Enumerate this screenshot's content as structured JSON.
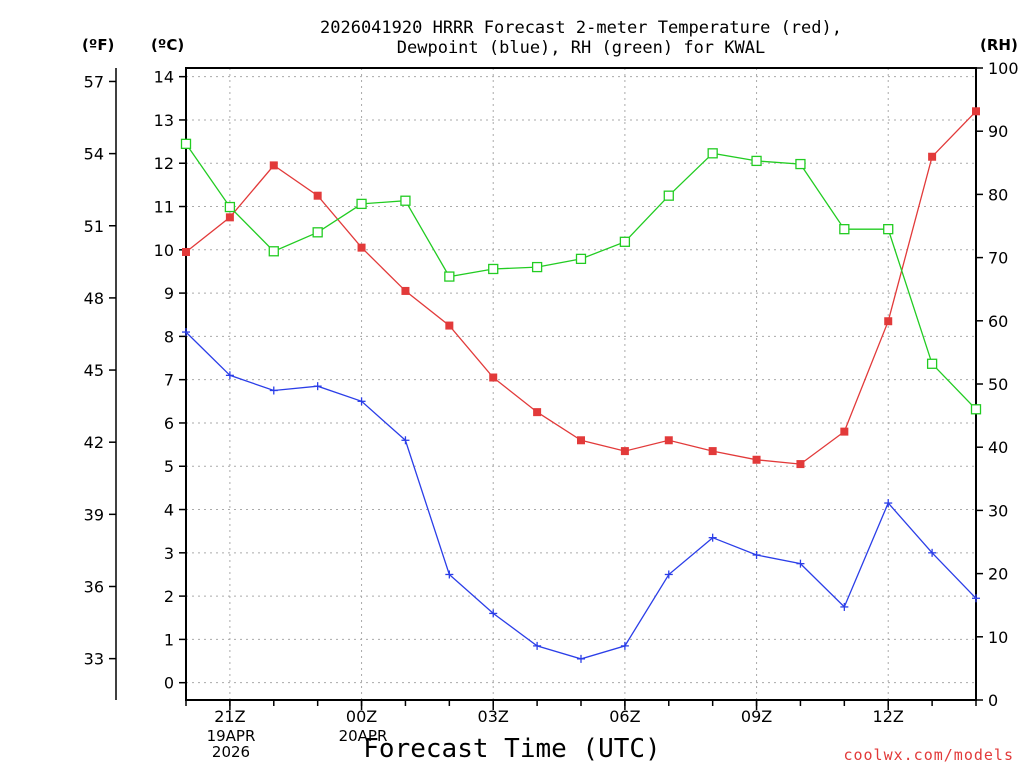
{
  "chart_data": {
    "type": "line",
    "title_line1": "2026041920 HRRR Forecast 2-meter Temperature (red),",
    "title_line2": "Dewpoint (blue), RH (green) for KWAL",
    "xlabel": "Forecast Time (UTC)",
    "credit": "coolwx.com/models",
    "units": {
      "fahrenheit": "(ºF)",
      "celsius": "(ºC)",
      "rh": "(RH)"
    },
    "x_hours": [
      20,
      21,
      22,
      23,
      24,
      25,
      26,
      27,
      28,
      29,
      30,
      31,
      32,
      33,
      34,
      35,
      36,
      37,
      38
    ],
    "xlim": [
      20,
      38
    ],
    "x_ticks": [
      {
        "hour": 21,
        "label": "21Z"
      },
      {
        "hour": 24,
        "label": "00Z"
      },
      {
        "hour": 27,
        "label": "03Z"
      },
      {
        "hour": 30,
        "label": "06Z"
      },
      {
        "hour": 33,
        "label": "09Z"
      },
      {
        "hour": 36,
        "label": "12Z"
      }
    ],
    "date_labels": [
      {
        "hour": 21,
        "line1": "19APR",
        "line2": "2026"
      },
      {
        "hour": 24,
        "line1": "20APR",
        "line2": ""
      }
    ],
    "celsius_axis": {
      "ylim": [
        -0.4,
        14.2
      ],
      "ticks": [
        0,
        1,
        2,
        3,
        4,
        5,
        6,
        7,
        8,
        9,
        10,
        11,
        12,
        13,
        14
      ]
    },
    "fahrenheit_ticks": [
      33,
      36,
      39,
      42,
      45,
      48,
      51,
      54,
      57
    ],
    "rh_axis": {
      "ylim": [
        0,
        100
      ],
      "ticks": [
        0,
        10,
        20,
        30,
        40,
        50,
        60,
        70,
        80,
        90,
        100
      ]
    },
    "series": [
      {
        "name": "Temperature",
        "color": "#e23a3a",
        "marker": "filled-square",
        "axis": "celsius",
        "values": [
          9.95,
          10.75,
          11.95,
          11.25,
          10.05,
          9.05,
          8.25,
          7.05,
          6.25,
          5.6,
          5.35,
          5.6,
          5.35,
          5.15,
          5.05,
          5.8,
          8.35,
          12.15,
          13.2
        ]
      },
      {
        "name": "Dewpoint",
        "color": "#2b3ee8",
        "marker": "plus",
        "axis": "celsius",
        "values": [
          8.1,
          7.1,
          6.75,
          6.85,
          6.5,
          5.6,
          2.5,
          1.6,
          0.85,
          0.55,
          0.85,
          2.5,
          3.35,
          2.95,
          2.75,
          1.75,
          4.15,
          3.0,
          1.95
        ]
      },
      {
        "name": "RH",
        "color": "#22cc22",
        "marker": "open-square",
        "axis": "rh",
        "values": [
          88,
          78,
          71,
          74,
          78.5,
          79,
          67,
          68.2,
          68.5,
          69.8,
          72.5,
          79.8,
          86.5,
          85.3,
          84.8,
          74.5,
          74.5,
          53.2,
          46
        ]
      }
    ]
  }
}
